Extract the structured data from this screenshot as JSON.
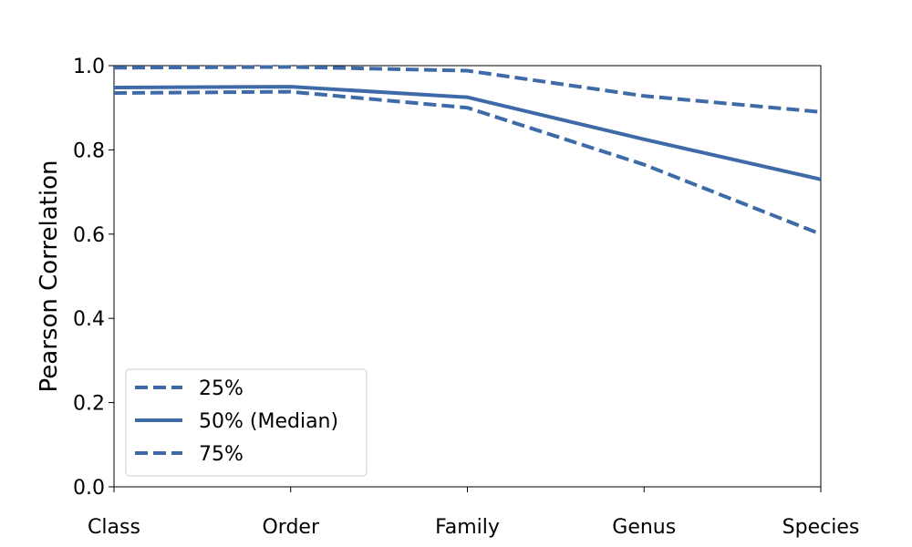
{
  "chart_data": {
    "type": "line",
    "categories": [
      "Class",
      "Order",
      "Family",
      "Genus",
      "Species"
    ],
    "series": [
      {
        "name": "25%",
        "values": [
          0.935,
          0.938,
          0.9,
          0.765,
          0.6
        ],
        "style": "dashed"
      },
      {
        "name": "50% (Median)",
        "values": [
          0.948,
          0.95,
          0.925,
          0.825,
          0.73
        ],
        "style": "solid"
      },
      {
        "name": "75%",
        "values": [
          0.995,
          0.997,
          0.988,
          0.928,
          0.89
        ],
        "style": "dashed"
      }
    ],
    "title": "",
    "xlabel": "",
    "ylabel": "Pearson Correlation",
    "ylim": [
      0.0,
      1.0
    ],
    "yticks": [
      "0.0",
      "0.2",
      "0.4",
      "0.6",
      "0.8",
      "1.0"
    ],
    "grid": false,
    "legend_position": "lower-left",
    "line_color": "#3f6aa8"
  }
}
